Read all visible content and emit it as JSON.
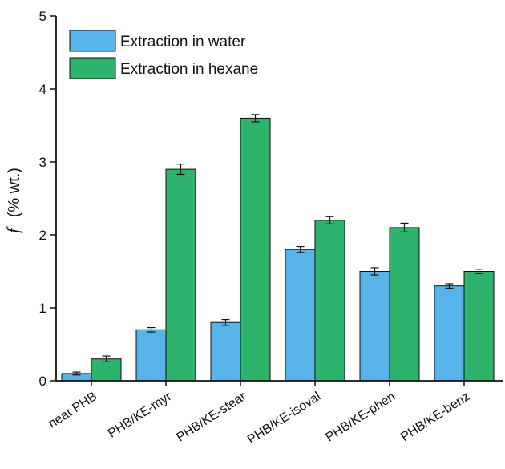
{
  "chart_data": {
    "type": "bar",
    "title": "",
    "xlabel": "",
    "ylabel_symbol": "f",
    "ylabel_unit": "(% wt.)",
    "ylim": [
      0,
      5
    ],
    "yticks": [
      "0",
      "1",
      "2",
      "3",
      "4",
      "5"
    ],
    "categories": [
      "neat PHB",
      "PHB/KE-myr",
      "PHB/KE-stear",
      "PHB/KE-isoval",
      "PHB/KE-phen",
      "PHB/KE-benz"
    ],
    "series": [
      {
        "name": "Extraction in water",
        "color": "#56b4e9",
        "values": [
          0.1,
          0.7,
          0.8,
          1.8,
          1.5,
          1.3
        ],
        "errors": [
          0.02,
          0.03,
          0.04,
          0.04,
          0.05,
          0.03
        ]
      },
      {
        "name": "Extraction in hexane",
        "color": "#2db36b",
        "values": [
          0.3,
          2.9,
          3.6,
          2.2,
          2.1,
          1.5
        ],
        "errors": [
          0.04,
          0.07,
          0.05,
          0.05,
          0.06,
          0.03
        ]
      }
    ],
    "legend_position": "top-left",
    "grid": false
  }
}
